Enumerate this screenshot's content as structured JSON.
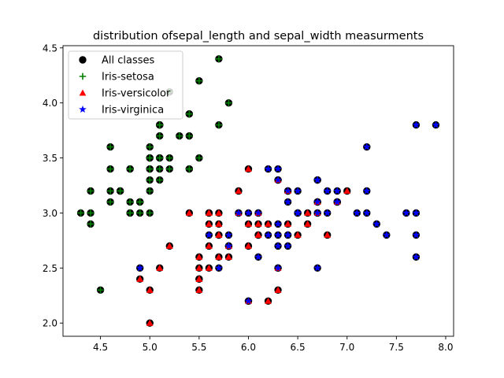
{
  "chart_data": {
    "type": "scatter",
    "title": "distribution ofsepal_length and sepal_width measurments",
    "xlabel": "",
    "ylabel": "",
    "xlim": [
      4.12,
      8.08
    ],
    "ylim": [
      1.88,
      4.52
    ],
    "xticks": [
      4.5,
      5.0,
      5.5,
      6.0,
      6.5,
      7.0,
      7.5,
      8.0
    ],
    "xtick_labels": [
      "4.5",
      "5.0",
      "5.5",
      "6.0",
      "6.5",
      "7.0",
      "7.5",
      "8.0"
    ],
    "yticks": [
      2.0,
      2.5,
      3.0,
      3.5,
      4.0,
      4.5
    ],
    "ytick_labels": [
      "2.0",
      "2.5",
      "3.0",
      "3.5",
      "4.0",
      "4.5"
    ],
    "grid": false,
    "legend_position": "top-left",
    "series": [
      {
        "name": "All classes",
        "marker": "circle",
        "color": "#000000",
        "points": [
          [
            5.1,
            3.5
          ],
          [
            4.9,
            3.0
          ],
          [
            4.7,
            3.2
          ],
          [
            4.6,
            3.1
          ],
          [
            5.0,
            3.6
          ],
          [
            5.4,
            3.9
          ],
          [
            4.6,
            3.4
          ],
          [
            5.0,
            3.4
          ],
          [
            4.4,
            2.9
          ],
          [
            4.9,
            3.1
          ],
          [
            5.4,
            3.7
          ],
          [
            4.8,
            3.4
          ],
          [
            4.8,
            3.0
          ],
          [
            4.3,
            3.0
          ],
          [
            5.8,
            4.0
          ],
          [
            5.7,
            4.4
          ],
          [
            5.4,
            3.9
          ],
          [
            5.1,
            3.5
          ],
          [
            5.7,
            3.8
          ],
          [
            5.1,
            3.8
          ],
          [
            5.4,
            3.4
          ],
          [
            5.1,
            3.7
          ],
          [
            4.6,
            3.6
          ],
          [
            5.1,
            3.3
          ],
          [
            4.8,
            3.4
          ],
          [
            5.0,
            3.0
          ],
          [
            5.0,
            3.4
          ],
          [
            5.2,
            3.5
          ],
          [
            5.2,
            3.4
          ],
          [
            4.7,
            3.2
          ],
          [
            4.8,
            3.1
          ],
          [
            5.4,
            3.4
          ],
          [
            5.2,
            4.1
          ],
          [
            5.5,
            4.2
          ],
          [
            4.9,
            3.1
          ],
          [
            5.0,
            3.2
          ],
          [
            5.5,
            3.5
          ],
          [
            4.9,
            3.1
          ],
          [
            4.4,
            3.0
          ],
          [
            5.1,
            3.4
          ],
          [
            5.0,
            3.5
          ],
          [
            4.5,
            2.3
          ],
          [
            4.4,
            3.2
          ],
          [
            5.0,
            3.5
          ],
          [
            5.1,
            3.8
          ],
          [
            4.8,
            3.0
          ],
          [
            5.1,
            3.8
          ],
          [
            4.6,
            3.2
          ],
          [
            5.3,
            3.7
          ],
          [
            5.0,
            3.3
          ],
          [
            7.0,
            3.2
          ],
          [
            6.4,
            3.2
          ],
          [
            6.9,
            3.1
          ],
          [
            5.5,
            2.3
          ],
          [
            6.5,
            2.8
          ],
          [
            5.7,
            2.8
          ],
          [
            6.3,
            3.3
          ],
          [
            4.9,
            2.4
          ],
          [
            6.6,
            2.9
          ],
          [
            5.2,
            2.7
          ],
          [
            5.0,
            2.0
          ],
          [
            5.9,
            3.0
          ],
          [
            6.0,
            2.2
          ],
          [
            6.1,
            2.9
          ],
          [
            5.6,
            2.9
          ],
          [
            6.7,
            3.1
          ],
          [
            5.6,
            3.0
          ],
          [
            5.8,
            2.7
          ],
          [
            6.2,
            2.2
          ],
          [
            5.6,
            2.5
          ],
          [
            5.9,
            3.2
          ],
          [
            6.1,
            2.8
          ],
          [
            6.3,
            2.5
          ],
          [
            6.1,
            2.8
          ],
          [
            6.4,
            2.9
          ],
          [
            6.6,
            3.0
          ],
          [
            6.8,
            2.8
          ],
          [
            6.7,
            3.0
          ],
          [
            6.0,
            2.9
          ],
          [
            5.7,
            2.6
          ],
          [
            5.5,
            2.4
          ],
          [
            5.5,
            2.4
          ],
          [
            5.8,
            2.7
          ],
          [
            6.0,
            2.7
          ],
          [
            5.4,
            3.0
          ],
          [
            6.0,
            3.4
          ],
          [
            6.7,
            3.1
          ],
          [
            6.3,
            2.3
          ],
          [
            5.6,
            3.0
          ],
          [
            5.5,
            2.5
          ],
          [
            5.5,
            2.6
          ],
          [
            6.1,
            3.0
          ],
          [
            5.8,
            2.6
          ],
          [
            5.0,
            2.3
          ],
          [
            5.6,
            2.7
          ],
          [
            5.7,
            3.0
          ],
          [
            5.7,
            2.9
          ],
          [
            6.2,
            2.9
          ],
          [
            5.1,
            2.5
          ],
          [
            5.7,
            2.8
          ],
          [
            6.3,
            3.3
          ],
          [
            5.8,
            2.7
          ],
          [
            7.1,
            3.0
          ],
          [
            6.3,
            2.9
          ],
          [
            6.5,
            3.0
          ],
          [
            7.6,
            3.0
          ],
          [
            4.9,
            2.5
          ],
          [
            7.3,
            2.9
          ],
          [
            6.7,
            2.5
          ],
          [
            7.2,
            3.6
          ],
          [
            6.5,
            3.2
          ],
          [
            6.4,
            2.7
          ],
          [
            6.8,
            3.0
          ],
          [
            5.7,
            2.5
          ],
          [
            5.8,
            2.8
          ],
          [
            6.4,
            3.2
          ],
          [
            6.5,
            3.0
          ],
          [
            7.7,
            3.8
          ],
          [
            7.7,
            2.6
          ],
          [
            6.0,
            2.2
          ],
          [
            6.9,
            3.2
          ],
          [
            5.6,
            2.8
          ],
          [
            7.7,
            2.8
          ],
          [
            6.3,
            2.7
          ],
          [
            6.7,
            3.3
          ],
          [
            7.2,
            3.2
          ],
          [
            6.2,
            2.8
          ],
          [
            6.1,
            3.0
          ],
          [
            6.4,
            2.8
          ],
          [
            7.2,
            3.0
          ],
          [
            7.4,
            2.8
          ],
          [
            7.9,
            3.8
          ],
          [
            6.4,
            2.8
          ],
          [
            6.3,
            2.8
          ],
          [
            6.1,
            2.6
          ],
          [
            7.7,
            3.0
          ],
          [
            6.3,
            3.4
          ],
          [
            6.4,
            3.1
          ],
          [
            6.0,
            3.0
          ],
          [
            6.9,
            3.1
          ],
          [
            6.7,
            3.1
          ],
          [
            6.9,
            3.1
          ],
          [
            5.8,
            2.7
          ],
          [
            6.8,
            3.2
          ],
          [
            6.7,
            3.3
          ],
          [
            6.7,
            3.0
          ],
          [
            6.3,
            2.5
          ],
          [
            6.5,
            3.0
          ],
          [
            6.2,
            3.4
          ],
          [
            5.9,
            3.0
          ]
        ]
      },
      {
        "name": "Iris-setosa",
        "marker": "plus",
        "color": "#008000",
        "points": [
          [
            5.1,
            3.5
          ],
          [
            4.9,
            3.0
          ],
          [
            4.7,
            3.2
          ],
          [
            4.6,
            3.1
          ],
          [
            5.0,
            3.6
          ],
          [
            5.4,
            3.9
          ],
          [
            4.6,
            3.4
          ],
          [
            5.0,
            3.4
          ],
          [
            4.4,
            2.9
          ],
          [
            4.9,
            3.1
          ],
          [
            5.4,
            3.7
          ],
          [
            4.8,
            3.4
          ],
          [
            4.8,
            3.0
          ],
          [
            4.3,
            3.0
          ],
          [
            5.8,
            4.0
          ],
          [
            5.7,
            4.4
          ],
          [
            5.4,
            3.9
          ],
          [
            5.1,
            3.5
          ],
          [
            5.7,
            3.8
          ],
          [
            5.1,
            3.8
          ],
          [
            5.4,
            3.4
          ],
          [
            5.1,
            3.7
          ],
          [
            4.6,
            3.6
          ],
          [
            5.1,
            3.3
          ],
          [
            4.8,
            3.4
          ],
          [
            5.0,
            3.0
          ],
          [
            5.0,
            3.4
          ],
          [
            5.2,
            3.5
          ],
          [
            5.2,
            3.4
          ],
          [
            4.7,
            3.2
          ],
          [
            4.8,
            3.1
          ],
          [
            5.4,
            3.4
          ],
          [
            5.2,
            4.1
          ],
          [
            5.5,
            4.2
          ],
          [
            4.9,
            3.1
          ],
          [
            5.0,
            3.2
          ],
          [
            5.5,
            3.5
          ],
          [
            4.9,
            3.1
          ],
          [
            4.4,
            3.0
          ],
          [
            5.1,
            3.4
          ],
          [
            5.0,
            3.5
          ],
          [
            4.5,
            2.3
          ],
          [
            4.4,
            3.2
          ],
          [
            5.0,
            3.5
          ],
          [
            5.1,
            3.8
          ],
          [
            4.8,
            3.0
          ],
          [
            5.1,
            3.8
          ],
          [
            4.6,
            3.2
          ],
          [
            5.3,
            3.7
          ],
          [
            5.0,
            3.3
          ]
        ]
      },
      {
        "name": "Iris-versicolor",
        "marker": "triangle",
        "color": "#ff0000",
        "points": [
          [
            7.0,
            3.2
          ],
          [
            6.4,
            3.2
          ],
          [
            6.9,
            3.1
          ],
          [
            5.5,
            2.3
          ],
          [
            6.5,
            2.8
          ],
          [
            5.7,
            2.8
          ],
          [
            6.3,
            3.3
          ],
          [
            4.9,
            2.4
          ],
          [
            6.6,
            2.9
          ],
          [
            5.2,
            2.7
          ],
          [
            5.0,
            2.0
          ],
          [
            5.9,
            3.0
          ],
          [
            6.0,
            2.2
          ],
          [
            6.1,
            2.9
          ],
          [
            5.6,
            2.9
          ],
          [
            6.7,
            3.1
          ],
          [
            5.6,
            3.0
          ],
          [
            5.8,
            2.7
          ],
          [
            6.2,
            2.2
          ],
          [
            5.6,
            2.5
          ],
          [
            5.9,
            3.2
          ],
          [
            6.1,
            2.8
          ],
          [
            6.3,
            2.5
          ],
          [
            6.1,
            2.8
          ],
          [
            6.4,
            2.9
          ],
          [
            6.6,
            3.0
          ],
          [
            6.8,
            2.8
          ],
          [
            6.7,
            3.0
          ],
          [
            6.0,
            2.9
          ],
          [
            5.7,
            2.6
          ],
          [
            5.5,
            2.4
          ],
          [
            5.5,
            2.4
          ],
          [
            5.8,
            2.7
          ],
          [
            6.0,
            2.7
          ],
          [
            5.4,
            3.0
          ],
          [
            6.0,
            3.4
          ],
          [
            6.7,
            3.1
          ],
          [
            6.3,
            2.3
          ],
          [
            5.6,
            3.0
          ],
          [
            5.5,
            2.5
          ],
          [
            5.5,
            2.6
          ],
          [
            6.1,
            3.0
          ],
          [
            5.8,
            2.6
          ],
          [
            5.0,
            2.3
          ],
          [
            5.6,
            2.7
          ],
          [
            5.7,
            3.0
          ],
          [
            5.7,
            2.9
          ],
          [
            6.2,
            2.9
          ],
          [
            5.1,
            2.5
          ],
          [
            5.7,
            2.8
          ]
        ]
      },
      {
        "name": "Iris-virginica",
        "marker": "star",
        "color": "#0000ff",
        "points": [
          [
            6.3,
            3.3
          ],
          [
            5.8,
            2.7
          ],
          [
            7.1,
            3.0
          ],
          [
            6.3,
            2.9
          ],
          [
            6.5,
            3.0
          ],
          [
            7.6,
            3.0
          ],
          [
            4.9,
            2.5
          ],
          [
            7.3,
            2.9
          ],
          [
            6.7,
            2.5
          ],
          [
            7.2,
            3.6
          ],
          [
            6.5,
            3.2
          ],
          [
            6.4,
            2.7
          ],
          [
            6.8,
            3.0
          ],
          [
            5.7,
            2.5
          ],
          [
            5.8,
            2.8
          ],
          [
            6.4,
            3.2
          ],
          [
            6.5,
            3.0
          ],
          [
            7.7,
            3.8
          ],
          [
            7.7,
            2.6
          ],
          [
            6.0,
            2.2
          ],
          [
            6.9,
            3.2
          ],
          [
            5.6,
            2.8
          ],
          [
            7.7,
            2.8
          ],
          [
            6.3,
            2.7
          ],
          [
            6.7,
            3.3
          ],
          [
            7.2,
            3.2
          ],
          [
            6.2,
            2.8
          ],
          [
            6.1,
            3.0
          ],
          [
            6.4,
            2.8
          ],
          [
            7.2,
            3.0
          ],
          [
            7.4,
            2.8
          ],
          [
            7.9,
            3.8
          ],
          [
            6.4,
            2.8
          ],
          [
            6.3,
            2.8
          ],
          [
            6.1,
            2.6
          ],
          [
            7.7,
            3.0
          ],
          [
            6.3,
            3.4
          ],
          [
            6.4,
            3.1
          ],
          [
            6.0,
            3.0
          ],
          [
            6.9,
            3.1
          ],
          [
            6.7,
            3.1
          ],
          [
            6.9,
            3.1
          ],
          [
            5.8,
            2.7
          ],
          [
            6.8,
            3.2
          ],
          [
            6.7,
            3.3
          ],
          [
            6.7,
            3.0
          ],
          [
            6.3,
            2.5
          ],
          [
            6.5,
            3.0
          ],
          [
            6.2,
            3.4
          ],
          [
            5.9,
            3.0
          ]
        ]
      }
    ]
  }
}
